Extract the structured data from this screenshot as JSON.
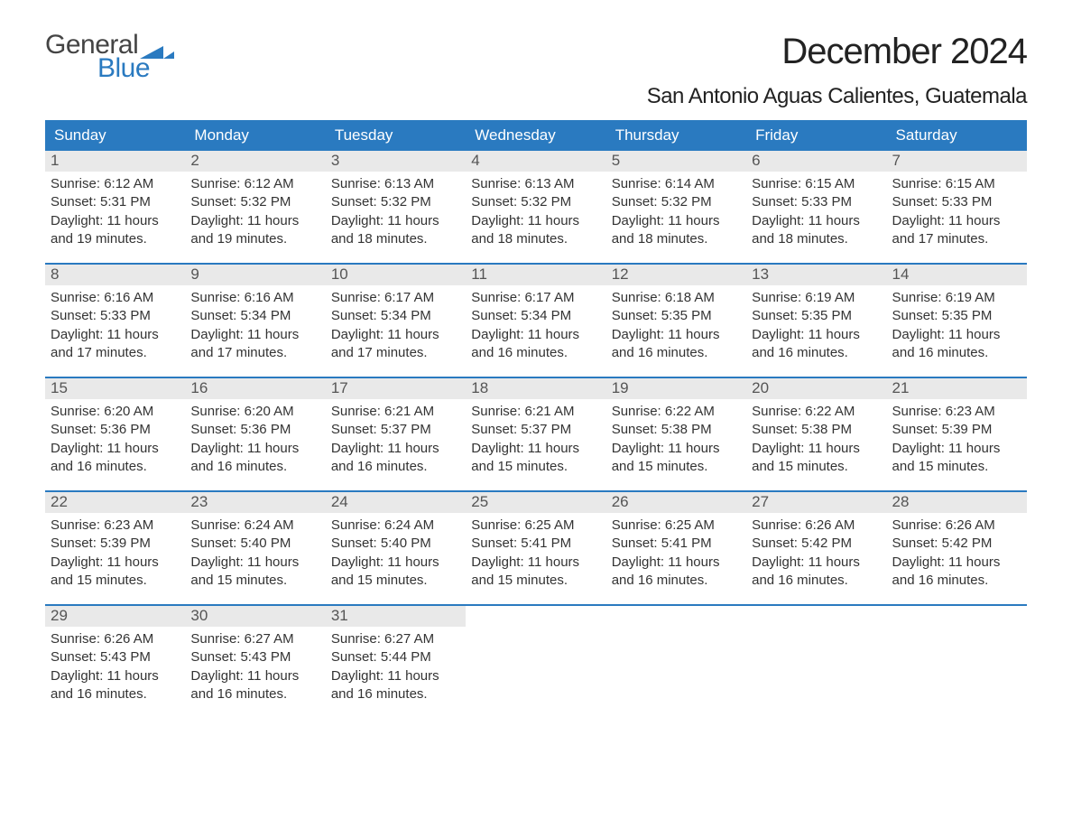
{
  "logo": {
    "line1": "General",
    "line2": "Blue",
    "triangle_color": "#2a7ac0"
  },
  "title": "December 2024",
  "subtitle": "San Antonio Aguas Calientes, Guatemala",
  "colors": {
    "header_bg": "#2a7ac0",
    "header_text": "#ffffff",
    "week_border": "#2a7ac0",
    "daynum_bg": "#e9e9e9",
    "daynum_text": "#555555",
    "body_text": "#333333",
    "page_bg": "#ffffff"
  },
  "fonts": {
    "title_size_pt": 30,
    "subtitle_size_pt": 18,
    "header_size_pt": 13,
    "daynum_size_pt": 13,
    "body_size_pt": 11
  },
  "day_labels": [
    "Sunday",
    "Monday",
    "Tuesday",
    "Wednesday",
    "Thursday",
    "Friday",
    "Saturday"
  ],
  "weeks": [
    [
      {
        "n": "1",
        "sr": "Sunrise: 6:12 AM",
        "ss": "Sunset: 5:31 PM",
        "d1": "Daylight: 11 hours",
        "d2": "and 19 minutes."
      },
      {
        "n": "2",
        "sr": "Sunrise: 6:12 AM",
        "ss": "Sunset: 5:32 PM",
        "d1": "Daylight: 11 hours",
        "d2": "and 19 minutes."
      },
      {
        "n": "3",
        "sr": "Sunrise: 6:13 AM",
        "ss": "Sunset: 5:32 PM",
        "d1": "Daylight: 11 hours",
        "d2": "and 18 minutes."
      },
      {
        "n": "4",
        "sr": "Sunrise: 6:13 AM",
        "ss": "Sunset: 5:32 PM",
        "d1": "Daylight: 11 hours",
        "d2": "and 18 minutes."
      },
      {
        "n": "5",
        "sr": "Sunrise: 6:14 AM",
        "ss": "Sunset: 5:32 PM",
        "d1": "Daylight: 11 hours",
        "d2": "and 18 minutes."
      },
      {
        "n": "6",
        "sr": "Sunrise: 6:15 AM",
        "ss": "Sunset: 5:33 PM",
        "d1": "Daylight: 11 hours",
        "d2": "and 18 minutes."
      },
      {
        "n": "7",
        "sr": "Sunrise: 6:15 AM",
        "ss": "Sunset: 5:33 PM",
        "d1": "Daylight: 11 hours",
        "d2": "and 17 minutes."
      }
    ],
    [
      {
        "n": "8",
        "sr": "Sunrise: 6:16 AM",
        "ss": "Sunset: 5:33 PM",
        "d1": "Daylight: 11 hours",
        "d2": "and 17 minutes."
      },
      {
        "n": "9",
        "sr": "Sunrise: 6:16 AM",
        "ss": "Sunset: 5:34 PM",
        "d1": "Daylight: 11 hours",
        "d2": "and 17 minutes."
      },
      {
        "n": "10",
        "sr": "Sunrise: 6:17 AM",
        "ss": "Sunset: 5:34 PM",
        "d1": "Daylight: 11 hours",
        "d2": "and 17 minutes."
      },
      {
        "n": "11",
        "sr": "Sunrise: 6:17 AM",
        "ss": "Sunset: 5:34 PM",
        "d1": "Daylight: 11 hours",
        "d2": "and 16 minutes."
      },
      {
        "n": "12",
        "sr": "Sunrise: 6:18 AM",
        "ss": "Sunset: 5:35 PM",
        "d1": "Daylight: 11 hours",
        "d2": "and 16 minutes."
      },
      {
        "n": "13",
        "sr": "Sunrise: 6:19 AM",
        "ss": "Sunset: 5:35 PM",
        "d1": "Daylight: 11 hours",
        "d2": "and 16 minutes."
      },
      {
        "n": "14",
        "sr": "Sunrise: 6:19 AM",
        "ss": "Sunset: 5:35 PM",
        "d1": "Daylight: 11 hours",
        "d2": "and 16 minutes."
      }
    ],
    [
      {
        "n": "15",
        "sr": "Sunrise: 6:20 AM",
        "ss": "Sunset: 5:36 PM",
        "d1": "Daylight: 11 hours",
        "d2": "and 16 minutes."
      },
      {
        "n": "16",
        "sr": "Sunrise: 6:20 AM",
        "ss": "Sunset: 5:36 PM",
        "d1": "Daylight: 11 hours",
        "d2": "and 16 minutes."
      },
      {
        "n": "17",
        "sr": "Sunrise: 6:21 AM",
        "ss": "Sunset: 5:37 PM",
        "d1": "Daylight: 11 hours",
        "d2": "and 16 minutes."
      },
      {
        "n": "18",
        "sr": "Sunrise: 6:21 AM",
        "ss": "Sunset: 5:37 PM",
        "d1": "Daylight: 11 hours",
        "d2": "and 15 minutes."
      },
      {
        "n": "19",
        "sr": "Sunrise: 6:22 AM",
        "ss": "Sunset: 5:38 PM",
        "d1": "Daylight: 11 hours",
        "d2": "and 15 minutes."
      },
      {
        "n": "20",
        "sr": "Sunrise: 6:22 AM",
        "ss": "Sunset: 5:38 PM",
        "d1": "Daylight: 11 hours",
        "d2": "and 15 minutes."
      },
      {
        "n": "21",
        "sr": "Sunrise: 6:23 AM",
        "ss": "Sunset: 5:39 PM",
        "d1": "Daylight: 11 hours",
        "d2": "and 15 minutes."
      }
    ],
    [
      {
        "n": "22",
        "sr": "Sunrise: 6:23 AM",
        "ss": "Sunset: 5:39 PM",
        "d1": "Daylight: 11 hours",
        "d2": "and 15 minutes."
      },
      {
        "n": "23",
        "sr": "Sunrise: 6:24 AM",
        "ss": "Sunset: 5:40 PM",
        "d1": "Daylight: 11 hours",
        "d2": "and 15 minutes."
      },
      {
        "n": "24",
        "sr": "Sunrise: 6:24 AM",
        "ss": "Sunset: 5:40 PM",
        "d1": "Daylight: 11 hours",
        "d2": "and 15 minutes."
      },
      {
        "n": "25",
        "sr": "Sunrise: 6:25 AM",
        "ss": "Sunset: 5:41 PM",
        "d1": "Daylight: 11 hours",
        "d2": "and 15 minutes."
      },
      {
        "n": "26",
        "sr": "Sunrise: 6:25 AM",
        "ss": "Sunset: 5:41 PM",
        "d1": "Daylight: 11 hours",
        "d2": "and 16 minutes."
      },
      {
        "n": "27",
        "sr": "Sunrise: 6:26 AM",
        "ss": "Sunset: 5:42 PM",
        "d1": "Daylight: 11 hours",
        "d2": "and 16 minutes."
      },
      {
        "n": "28",
        "sr": "Sunrise: 6:26 AM",
        "ss": "Sunset: 5:42 PM",
        "d1": "Daylight: 11 hours",
        "d2": "and 16 minutes."
      }
    ],
    [
      {
        "n": "29",
        "sr": "Sunrise: 6:26 AM",
        "ss": "Sunset: 5:43 PM",
        "d1": "Daylight: 11 hours",
        "d2": "and 16 minutes."
      },
      {
        "n": "30",
        "sr": "Sunrise: 6:27 AM",
        "ss": "Sunset: 5:43 PM",
        "d1": "Daylight: 11 hours",
        "d2": "and 16 minutes."
      },
      {
        "n": "31",
        "sr": "Sunrise: 6:27 AM",
        "ss": "Sunset: 5:44 PM",
        "d1": "Daylight: 11 hours",
        "d2": "and 16 minutes."
      },
      null,
      null,
      null,
      null
    ]
  ]
}
